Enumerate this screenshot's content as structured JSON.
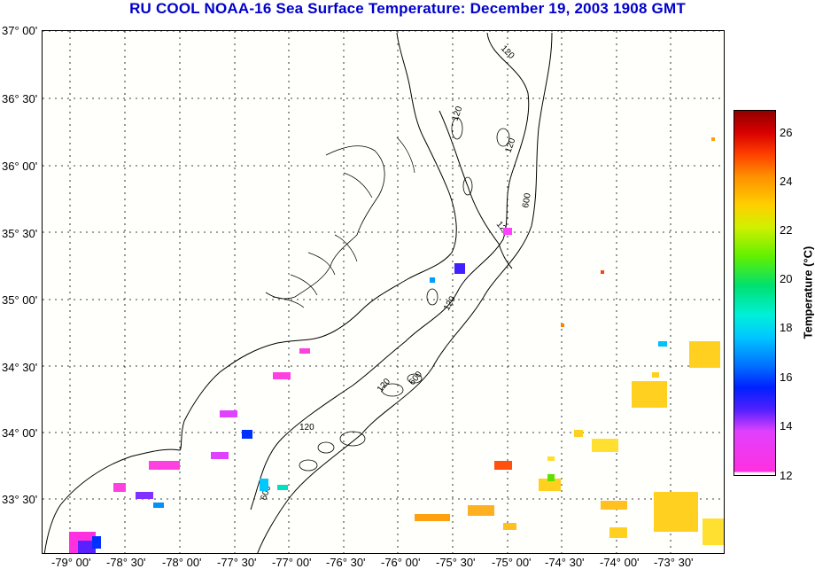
{
  "title": "RU COOL  NOAA-16  Sea Surface Temperature:  December 19, 2003 1908 GMT",
  "latitude_labels": [
    "37° 00'",
    "36° 30'",
    "36° 00'",
    "35° 30'",
    "35° 00'",
    "34° 30'",
    "34° 00'",
    "33° 30'"
  ],
  "longitude_labels": [
    "-79° 00'",
    "-78° 30'",
    "-78° 00'",
    "-77° 30'",
    "-77° 00'",
    "-76° 30'",
    "-76° 00'",
    "-75° 30'",
    "-75° 00'",
    "-74° 30'",
    "-74° 00'",
    "-73° 30'"
  ],
  "contour_labels": [
    "120",
    "120",
    "120",
    "600",
    "120",
    "120",
    "600",
    "120",
    "120",
    "600"
  ],
  "colorbar": {
    "title": "Temperature (°C)",
    "ticks": [
      "26",
      "24",
      "22",
      "20",
      "18",
      "16",
      "14",
      "12"
    ],
    "min": 12,
    "max": 27
  },
  "colors": {
    "title": "#0000cc",
    "coast": "#000000",
    "grid": "#000000"
  }
}
